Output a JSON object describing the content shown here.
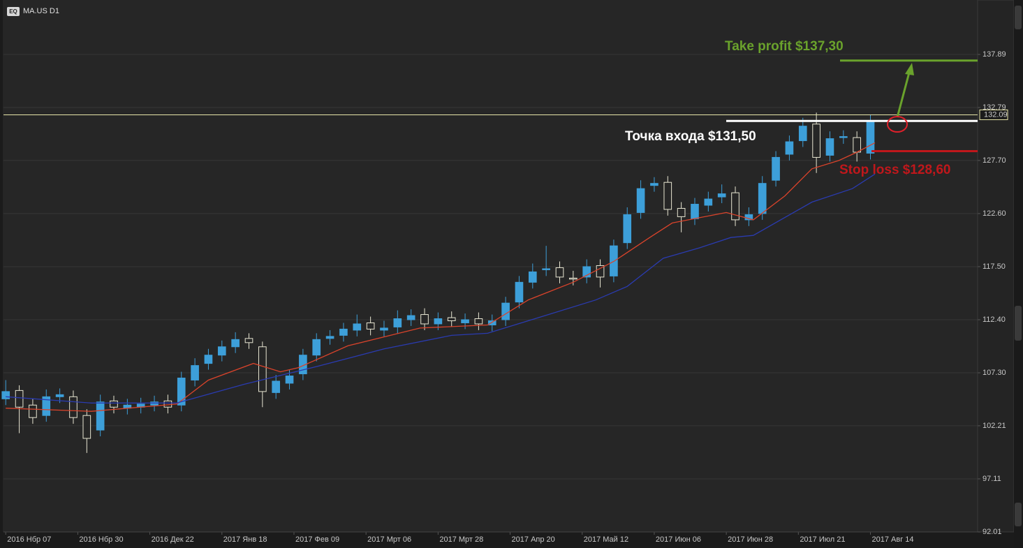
{
  "chart_data": {
    "type": "candlestick",
    "symbol": "MA.US D1",
    "badge": "EQ",
    "x": [
      0,
      3,
      6,
      9,
      12,
      15,
      18,
      21,
      24,
      27,
      30,
      33,
      36,
      39,
      42,
      45,
      48,
      51,
      54,
      57,
      60,
      63,
      66,
      69,
      72,
      75,
      78,
      81,
      84,
      87,
      90,
      93,
      96,
      99,
      102,
      105,
      108,
      111,
      114,
      117,
      120,
      123,
      126,
      129,
      132,
      135,
      138,
      141,
      144,
      147,
      150,
      153,
      156,
      159,
      162,
      165,
      168,
      171,
      174,
      177,
      180,
      183,
      186,
      189,
      192
    ],
    "open": [
      104.8,
      105.6,
      104.2,
      103.2,
      105,
      105,
      103.2,
      101.8,
      104.6,
      103.9,
      104,
      104.2,
      104.6,
      104.2,
      106.6,
      108.2,
      109,
      109.8,
      110.6,
      109.8,
      105.4,
      106.3,
      107.2,
      109,
      110.6,
      110.9,
      111.4,
      112.1,
      111.4,
      111.7,
      112.4,
      112.9,
      112,
      112.6,
      112.1,
      112.5,
      111.9,
      112.4,
      114.1,
      116,
      117.2,
      117.4,
      116.4,
      116.5,
      117.6,
      116.6,
      119.8,
      122.7,
      125.3,
      125.6,
      123.1,
      122.1,
      123.4,
      124.2,
      124.6,
      122,
      122.6,
      125.8,
      128.3,
      129.6,
      131.2,
      128.2,
      129.9,
      129.9,
      128.4
    ],
    "high": [
      106.6,
      106.1,
      104.8,
      105.7,
      105.8,
      105.6,
      103.8,
      105.2,
      105.1,
      104.8,
      104.9,
      105.1,
      105.2,
      107.4,
      108.7,
      109.6,
      110.4,
      111.2,
      111.1,
      110.3,
      107.1,
      107.6,
      109.6,
      111.1,
      111.4,
      112.1,
      112.9,
      112.7,
      112.3,
      113.3,
      113.4,
      113.5,
      113.1,
      113.2,
      113,
      113.1,
      112.9,
      114.6,
      116.6,
      117.8,
      119.5,
      118,
      117.1,
      118.2,
      118.2,
      120.1,
      123.2,
      125.8,
      126.1,
      126.2,
      123.7,
      124.1,
      124.7,
      125.4,
      125.2,
      123.2,
      126.2,
      128.6,
      130.1,
      131.8,
      132.3,
      130.5,
      130.6,
      130.5,
      132.1
    ],
    "low": [
      104.2,
      101.5,
      102.4,
      102.6,
      104.4,
      102.4,
      99.6,
      101.2,
      103.4,
      103.3,
      103.4,
      103.6,
      103.4,
      103.6,
      106,
      107.6,
      108.4,
      109.2,
      109.6,
      104,
      104.8,
      105.7,
      106.6,
      108.4,
      110,
      110.3,
      110.8,
      110.9,
      110.8,
      111.1,
      111.8,
      111.4,
      111.4,
      111.7,
      111.5,
      111.4,
      111.3,
      111.8,
      113.5,
      115.4,
      116.6,
      115.9,
      115.7,
      115.9,
      115.5,
      116,
      119.2,
      122.1,
      124.7,
      122.4,
      120.8,
      121.5,
      122.8,
      123.6,
      121.4,
      121.4,
      122,
      125.2,
      127.7,
      129,
      126.5,
      127.6,
      129.3,
      127.6,
      127.8
    ],
    "close": [
      105.5,
      104,
      103,
      105,
      105.2,
      103,
      101,
      104.5,
      104,
      104.2,
      104.3,
      104.5,
      104,
      106.8,
      108,
      109,
      109.8,
      110.5,
      110.2,
      105.5,
      106.5,
      107,
      109,
      110.5,
      110.8,
      111.5,
      112,
      111.5,
      111.6,
      112.5,
      112.8,
      112,
      112.5,
      112.3,
      112.4,
      112,
      112.3,
      114,
      116,
      117,
      117.3,
      116.5,
      116.3,
      117.5,
      116.5,
      119.5,
      122.5,
      125,
      125.5,
      123,
      122.3,
      123.5,
      124,
      124.5,
      122,
      122.5,
      125.5,
      128,
      129.5,
      131,
      128,
      129.8,
      130,
      128.5,
      131.5
    ],
    "up_color": "#3d9fd9",
    "down_color": "#e8e6d2",
    "lines": [
      {
        "color": "#d9432b",
        "x": [
          0,
          19,
          38,
          45,
          55,
          61,
          65,
          76,
          92,
          107,
          116,
          126,
          135,
          143,
          148,
          160,
          166,
          173,
          179,
          185,
          189,
          193
        ],
        "values": [
          103.9,
          103.6,
          104.3,
          106.6,
          108.2,
          107.4,
          107.8,
          109.9,
          111.6,
          111.9,
          114.3,
          116,
          118,
          120.3,
          121.7,
          122.7,
          122,
          124.3,
          126.9,
          127.7,
          128.5,
          129.4
        ]
      },
      {
        "color": "#2a3bb0",
        "x": [
          0,
          19,
          38,
          53,
          69,
          84,
          99,
          107,
          116,
          131,
          138,
          146,
          154,
          161,
          166,
          179,
          188,
          193
        ],
        "values": [
          105,
          104.4,
          104.4,
          106.2,
          107.9,
          109.6,
          110.9,
          111.1,
          112.3,
          114.3,
          115.6,
          118.3,
          119.3,
          120.3,
          120.5,
          123.7,
          125,
          126.4
        ]
      }
    ],
    "last_price": 132.09,
    "last_price_color": "#e8e6a8",
    "levels": [
      {
        "label": "Take profit $137,30",
        "value": 137.3,
        "color": "#6aa22c"
      },
      {
        "label": "Точка входа $131,50",
        "value": 131.5,
        "color": "#ffffff"
      },
      {
        "label": "Stop loss $128,60",
        "value": 128.6,
        "color": "#c0171b"
      }
    ],
    "xlim": [
      -0.5,
      215.8
    ],
    "ylim": [
      92.01,
      143.12
    ],
    "yticks": [
      92.01,
      97.11,
      {
        "value": 102.21,
        "label": "102.21"
      },
      {
        "value": 107.3,
        "label": "107.30"
      },
      {
        "value": 112.4,
        "label": "112.40"
      },
      {
        "value": 117.5,
        "label": "117.50"
      },
      {
        "value": 122.6,
        "label": "122.60"
      },
      {
        "value": 127.7,
        "label": "127.70"
      },
      132.79,
      137.89
    ],
    "xticks": [
      {
        "value": 0,
        "label": "2016 Нбр 07"
      },
      {
        "value": 16,
        "label": "2016 Нбр 30"
      },
      {
        "value": 32,
        "label": "2016 Дек 22"
      },
      {
        "value": 48,
        "label": "2017 Янв 18"
      },
      {
        "value": 64,
        "label": "2017 Фев 09"
      },
      {
        "value": 80,
        "label": "2017 Мрт 06"
      },
      {
        "value": 96,
        "label": "2017 Мрт 28"
      },
      {
        "value": 112,
        "label": "2017 Апр 20"
      },
      {
        "value": 128,
        "label": "2017 Май 12"
      },
      {
        "value": 144,
        "label": "2017 Июн 06"
      },
      {
        "value": 160,
        "label": "2017 Июн 28"
      },
      {
        "value": 176,
        "label": "2017 Июл 21"
      },
      {
        "value": 192,
        "label": "2017 Авг 14"
      }
    ],
    "grid": true
  }
}
